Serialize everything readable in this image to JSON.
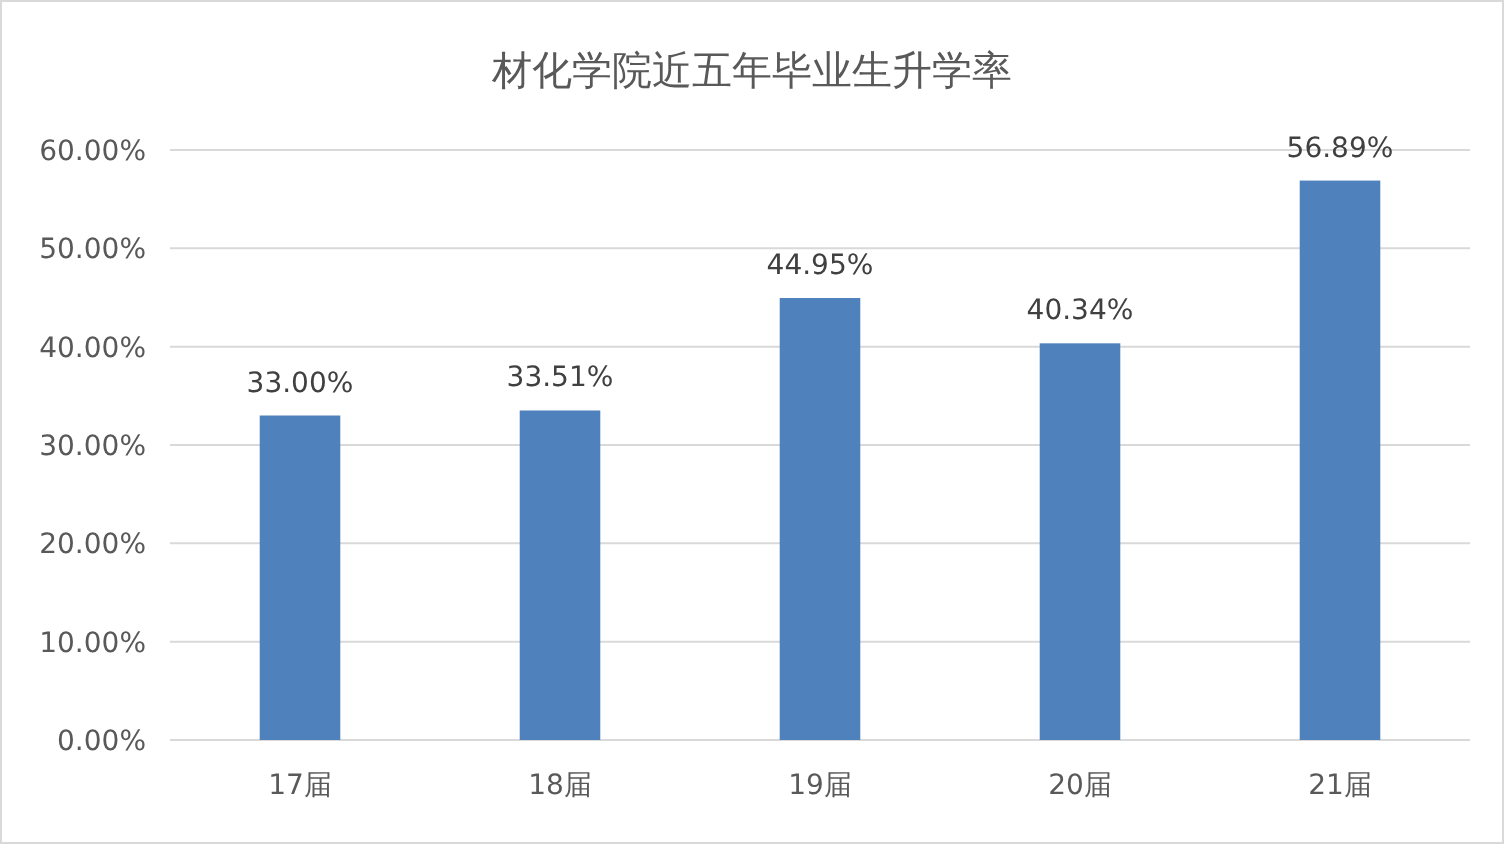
{
  "chart_data": {
    "type": "bar",
    "title": "材化学院近五年毕业生升学率",
    "categories": [
      "17届",
      "18届",
      "19届",
      "20届",
      "21届"
    ],
    "values": [
      33.0,
      33.51,
      44.95,
      40.34,
      56.89
    ],
    "value_labels": [
      "33.00%",
      "33.51%",
      "44.95%",
      "40.34%",
      "56.89%"
    ],
    "color": "#4f81bd",
    "ylim": [
      0,
      60
    ],
    "yticks": [
      {
        "value": 0,
        "label": "0.00%"
      },
      {
        "value": 10,
        "label": "10.00%"
      },
      {
        "value": 20,
        "label": "20.00%"
      },
      {
        "value": 30,
        "label": "30.00%"
      },
      {
        "value": 40,
        "label": "40.00%"
      },
      {
        "value": 50,
        "label": "50.00%"
      },
      {
        "value": 60,
        "label": "60.00%"
      }
    ],
    "grid": "y"
  }
}
